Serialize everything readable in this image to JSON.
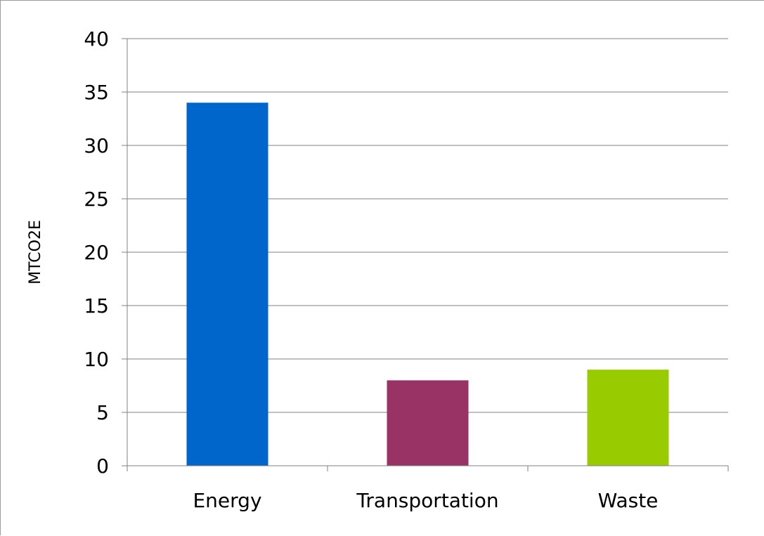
{
  "chart_data": {
    "type": "bar",
    "categories": [
      "Energy",
      "Transportation",
      "Waste"
    ],
    "values": [
      34,
      8,
      9
    ],
    "colors": [
      "#0066cc",
      "#993366",
      "#99cc00"
    ],
    "title": "",
    "xlabel": "",
    "ylabel": "MTCO2E",
    "ylim": [
      0,
      40
    ],
    "yticks": [
      0,
      5,
      10,
      15,
      20,
      25,
      30,
      35,
      40
    ],
    "grid": true,
    "legend": "none"
  }
}
